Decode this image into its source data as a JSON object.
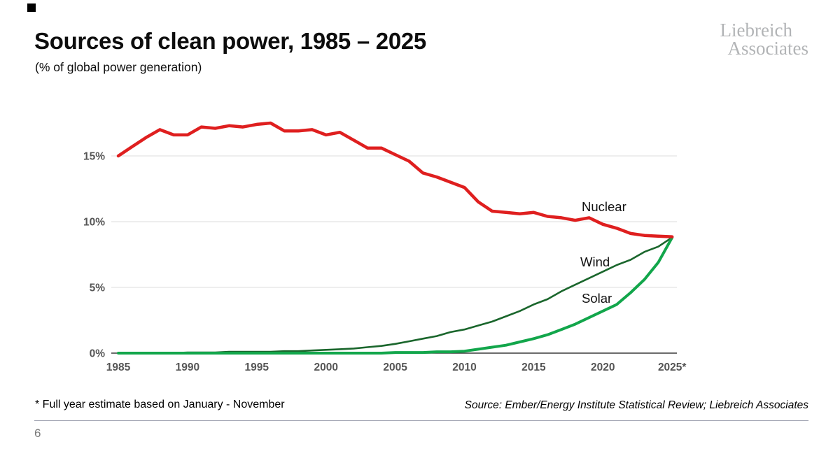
{
  "header": {
    "title": "Sources of clean power, 1985 – 2025",
    "subtitle": "(% of global power generation)",
    "logo_line1": "Liebreich",
    "logo_line2": "Associates"
  },
  "chart_data": {
    "type": "line",
    "title": "Sources of clean power, 1985 – 2025",
    "ylabel": "% of global power generation",
    "xlabel": "",
    "xlim": [
      1985,
      2025
    ],
    "ylim": [
      0,
      18.5
    ],
    "grid": "horizontal",
    "legend_position": "inline-labels-right",
    "x": [
      1985,
      1986,
      1987,
      1988,
      1989,
      1990,
      1991,
      1992,
      1993,
      1994,
      1995,
      1996,
      1997,
      1998,
      1999,
      2000,
      2001,
      2002,
      2003,
      2004,
      2005,
      2006,
      2007,
      2008,
      2009,
      2010,
      2011,
      2012,
      2013,
      2014,
      2015,
      2016,
      2017,
      2018,
      2019,
      2020,
      2021,
      2022,
      2023,
      2024,
      2025
    ],
    "x_tick_labels": [
      "1985",
      "1990",
      "1995",
      "2000",
      "2005",
      "2010",
      "2015",
      "2020",
      "2025*"
    ],
    "y_tick_labels": [
      "0%",
      "5%",
      "10%",
      "15%"
    ],
    "series": [
      {
        "name": "Nuclear",
        "color": "#df1f1f",
        "values": [
          15.0,
          15.7,
          16.4,
          17.0,
          16.6,
          16.6,
          17.2,
          17.1,
          17.3,
          17.2,
          17.4,
          17.5,
          16.9,
          16.9,
          17.0,
          16.6,
          16.8,
          16.2,
          15.6,
          15.6,
          15.1,
          14.6,
          13.7,
          13.4,
          13.0,
          12.6,
          11.5,
          10.8,
          10.7,
          10.6,
          10.7,
          10.4,
          10.3,
          10.1,
          10.3,
          9.8,
          9.5,
          9.1,
          8.95,
          8.9,
          8.85
        ]
      },
      {
        "name": "Wind",
        "color": "#1a662c",
        "values": [
          0.0,
          0.0,
          0.0,
          0.0,
          0.0,
          0.05,
          0.05,
          0.05,
          0.1,
          0.1,
          0.1,
          0.1,
          0.15,
          0.15,
          0.2,
          0.25,
          0.3,
          0.35,
          0.45,
          0.55,
          0.7,
          0.9,
          1.1,
          1.3,
          1.6,
          1.8,
          2.1,
          2.4,
          2.8,
          3.2,
          3.7,
          4.1,
          4.7,
          5.2,
          5.7,
          6.2,
          6.7,
          7.1,
          7.7,
          8.1,
          8.8
        ]
      },
      {
        "name": "Solar",
        "color": "#12a64b",
        "values": [
          0.0,
          0.0,
          0.0,
          0.0,
          0.0,
          0.0,
          0.0,
          0.0,
          0.0,
          0.0,
          0.0,
          0.0,
          0.0,
          0.0,
          0.0,
          0.0,
          0.0,
          0.0,
          0.0,
          0.0,
          0.05,
          0.05,
          0.05,
          0.1,
          0.1,
          0.15,
          0.3,
          0.45,
          0.6,
          0.85,
          1.1,
          1.4,
          1.8,
          2.2,
          2.7,
          3.2,
          3.7,
          4.6,
          5.6,
          6.9,
          8.8
        ]
      }
    ],
    "colors": {
      "axis_text": "#565656",
      "gridline": "#dcdcdc",
      "axis_line": "#3c3c3c",
      "series_label_text": "#111111"
    }
  },
  "footer": {
    "footnote": "* Full year estimate based on January - November",
    "source": "Source: Ember/Energy Institute Statistical Review; Liebreich Associates",
    "page_number": "6"
  }
}
